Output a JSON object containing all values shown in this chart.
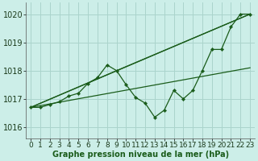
{
  "background_color": "#cceee8",
  "grid_color": "#aad4cc",
  "line_color": "#1a5c1a",
  "ylim": [
    1015.6,
    1020.4
  ],
  "xlim": [
    -0.5,
    23.5
  ],
  "yticks": [
    1016,
    1017,
    1018,
    1019,
    1020
  ],
  "xticks": [
    0,
    1,
    2,
    3,
    4,
    5,
    6,
    7,
    8,
    9,
    10,
    11,
    12,
    13,
    14,
    15,
    16,
    17,
    18,
    19,
    20,
    21,
    22,
    23
  ],
  "xlabel": "Graphe pression niveau de la mer (hPa)",
  "main_x": [
    0,
    1,
    2,
    3,
    4,
    5,
    6,
    7,
    8,
    9,
    10,
    11,
    12,
    13,
    14,
    15,
    16,
    17,
    18,
    19,
    20,
    21,
    22,
    23
  ],
  "main_y": [
    1016.7,
    1016.7,
    1016.8,
    1016.9,
    1017.1,
    1017.2,
    1017.55,
    1017.75,
    1018.2,
    1018.0,
    1017.5,
    1017.05,
    1016.85,
    1016.35,
    1016.6,
    1017.3,
    1017.0,
    1017.3,
    1018.0,
    1018.75,
    1018.75,
    1019.55,
    1020.0,
    1020.0
  ],
  "trend1_x": [
    0,
    23
  ],
  "trend1_y": [
    1016.7,
    1020.0
  ],
  "trend2_x": [
    0,
    23
  ],
  "trend2_y": [
    1016.7,
    1018.1
  ],
  "trend3_x": [
    0,
    9,
    23
  ],
  "trend3_y": [
    1016.7,
    1018.0,
    1020.0
  ],
  "xlabel_fontsize": 7,
  "tick_fontsize": 6.5
}
